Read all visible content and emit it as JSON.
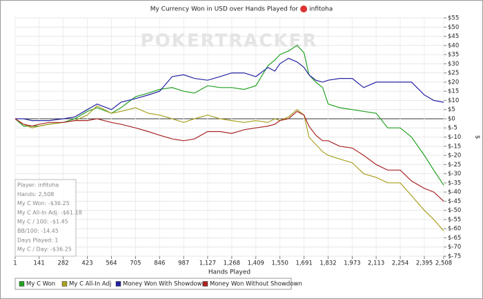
{
  "chart_data": {
    "type": "line",
    "title": "My Currency Won in USD over Hands Played for",
    "title_player": "infitoha",
    "watermark": "POKERTRACKER",
    "x_label": "Hands Played",
    "y_label": "$",
    "y_axis_side": "right",
    "grid": true,
    "legend_position": "bottom",
    "xlim": [
      1,
      2508
    ],
    "xticks": [
      1,
      141,
      282,
      423,
      564,
      705,
      846,
      987,
      {
        "value": 1127,
        "label": "1,127"
      },
      {
        "value": 1268,
        "label": "1,268"
      },
      {
        "value": 1409,
        "label": "1,409"
      },
      {
        "value": 1550,
        "label": "1,550"
      },
      {
        "value": 1691,
        "label": "1,691"
      },
      {
        "value": 1832,
        "label": "1,832"
      },
      {
        "value": 1973,
        "label": "1,973"
      },
      {
        "value": 2113,
        "label": "2,113"
      },
      {
        "value": 2254,
        "label": "2,254"
      },
      {
        "value": 2395,
        "label": "2,395"
      },
      {
        "value": 2508,
        "label": "2,508"
      }
    ],
    "ylim": [
      -75,
      55
    ],
    "yticks": [
      {
        "value": 55,
        "label": "$55"
      },
      {
        "value": 50,
        "label": "$50"
      },
      {
        "value": 45,
        "label": "$45"
      },
      {
        "value": 40,
        "label": "$40"
      },
      {
        "value": 35,
        "label": "$35"
      },
      {
        "value": 30,
        "label": "$30"
      },
      {
        "value": 25,
        "label": "$25"
      },
      {
        "value": 20,
        "label": "$20"
      },
      {
        "value": 15,
        "label": "$15"
      },
      {
        "value": 10,
        "label": "$10"
      },
      {
        "value": 5,
        "label": "$5"
      },
      {
        "value": 0,
        "label": "$0"
      },
      {
        "value": -5,
        "label": "$-5"
      },
      {
        "value": -10,
        "label": "$-10"
      },
      {
        "value": -15,
        "label": "$-15"
      },
      {
        "value": -20,
        "label": "$-20"
      },
      {
        "value": -25,
        "label": "$-25"
      },
      {
        "value": -30,
        "label": "$-30"
      },
      {
        "value": -35,
        "label": "$-35"
      },
      {
        "value": -40,
        "label": "$-40"
      },
      {
        "value": -45,
        "label": "$-45"
      },
      {
        "value": -50,
        "label": "$-50"
      },
      {
        "value": -55,
        "label": "$-55"
      },
      {
        "value": -60,
        "label": "$-60"
      },
      {
        "value": -65,
        "label": "$-65"
      },
      {
        "value": -70,
        "label": "$-70"
      },
      {
        "value": -75,
        "label": "$-75"
      }
    ],
    "x": [
      1,
      50,
      100,
      141,
      200,
      282,
      350,
      423,
      480,
      564,
      620,
      705,
      780,
      846,
      920,
      987,
      1050,
      1127,
      1200,
      1268,
      1340,
      1409,
      1480,
      1520,
      1550,
      1600,
      1650,
      1691,
      1720,
      1760,
      1800,
      1832,
      1900,
      1973,
      2040,
      2113,
      2180,
      2254,
      2320,
      2395,
      2450,
      2508
    ],
    "series": [
      {
        "name": "My C Won",
        "color": "#22a022",
        "values": [
          0,
          -4,
          -4,
          -4,
          -3,
          -2,
          0,
          4,
          6,
          3,
          6,
          12,
          14,
          16,
          17,
          15,
          14,
          18,
          17,
          17,
          16,
          18,
          29,
          32,
          35,
          37,
          40,
          36,
          24,
          20,
          17,
          8,
          6,
          5,
          4,
          3,
          -5,
          -5,
          -10,
          -20,
          -28,
          -36.25
        ]
      },
      {
        "name": "My C All-In Adj",
        "color": "#a8a020",
        "values": [
          0,
          -3,
          -5,
          -4,
          -3,
          -2,
          -1,
          2,
          7,
          3,
          4,
          6,
          3,
          2,
          0,
          -2,
          0,
          2,
          0,
          -1,
          -2,
          -1,
          -2,
          0,
          -1,
          1,
          5,
          2,
          -10,
          -14,
          -18,
          -20,
          -22,
          -24,
          -30,
          -32,
          -35,
          -35,
          -42,
          -50,
          -55,
          -61.18
        ]
      },
      {
        "name": "Money Won With Showdown",
        "color": "#2222a0",
        "values": [
          0,
          0,
          -1,
          -1,
          -1,
          0,
          1,
          5,
          8,
          5,
          9,
          11,
          13,
          15,
          23,
          24,
          22,
          21,
          23,
          25,
          25,
          23,
          28,
          26,
          30,
          33,
          31,
          28,
          24,
          21,
          20,
          21,
          22,
          22,
          17,
          20,
          20,
          20,
          20,
          13,
          10,
          9
        ]
      },
      {
        "name": "Money Won Without Showdown",
        "color": "#a82222",
        "values": [
          0,
          -3,
          -4,
          -3,
          -2,
          -2,
          -1,
          -1,
          0,
          -2,
          -3,
          -5,
          -7,
          -9,
          -11,
          -12,
          -11,
          -7,
          -7,
          -8,
          -6,
          -5,
          -4,
          -3,
          -1,
          0,
          4,
          2,
          -4,
          -9,
          -12,
          -12,
          -15,
          -16,
          -20,
          -25,
          -28,
          -28,
          -34,
          -38,
          -40,
          -45
        ]
      }
    ],
    "info_box": [
      "Player: infitoha",
      "Hands: 2,508",
      "My C Won: -$36.25",
      "My C All-In Adj: -$61.18",
      "My C / 100: -$1.45",
      "BB/100: -14.45",
      "Days Played: 1",
      "My C / Day: -$36.25"
    ]
  }
}
